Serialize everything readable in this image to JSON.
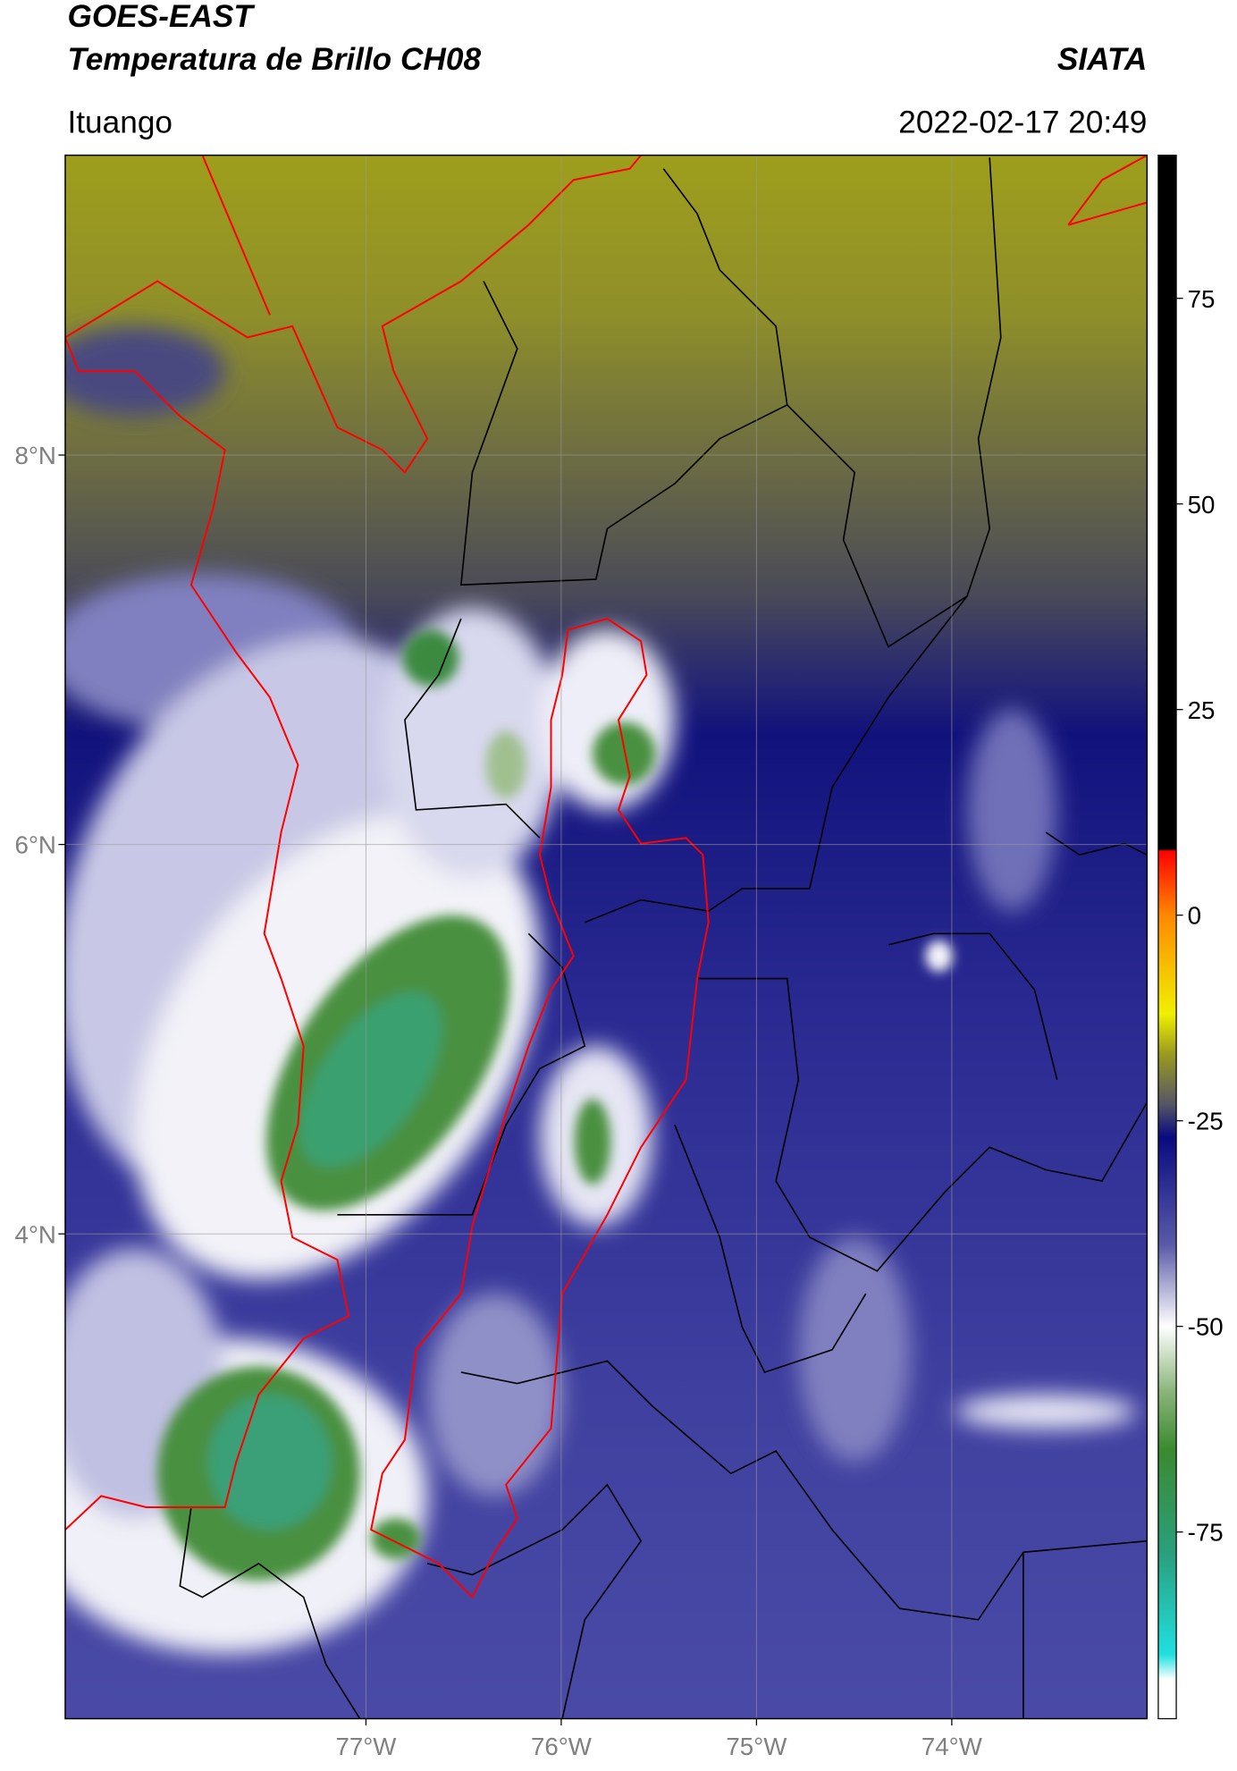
{
  "map": {
    "title": "GOES-EAST",
    "subtitle": "Temperatura de Brillo CH08",
    "source": "SIATA",
    "location": "Ituango",
    "datetime": "2022-02-17 20:49",
    "xlim": [
      -78.54,
      -73.0
    ],
    "ylim": [
      1.51,
      9.54
    ],
    "xticks": [
      {
        "value": -77,
        "label": "77°W"
      },
      {
        "value": -76,
        "label": "76°W"
      },
      {
        "value": -75,
        "label": "75°W"
      },
      {
        "value": -74,
        "label": "74°W"
      }
    ],
    "yticks": [
      {
        "value": 4,
        "label": "4°N"
      },
      {
        "value": 6,
        "label": "6°N"
      },
      {
        "value": 8,
        "label": "8°N"
      }
    ],
    "grid": true,
    "colorbar": {
      "lim": [
        -97.7,
        92.4
      ],
      "ticks": [
        -75,
        -50,
        -25,
        0,
        25,
        50,
        75
      ]
    }
  }
}
